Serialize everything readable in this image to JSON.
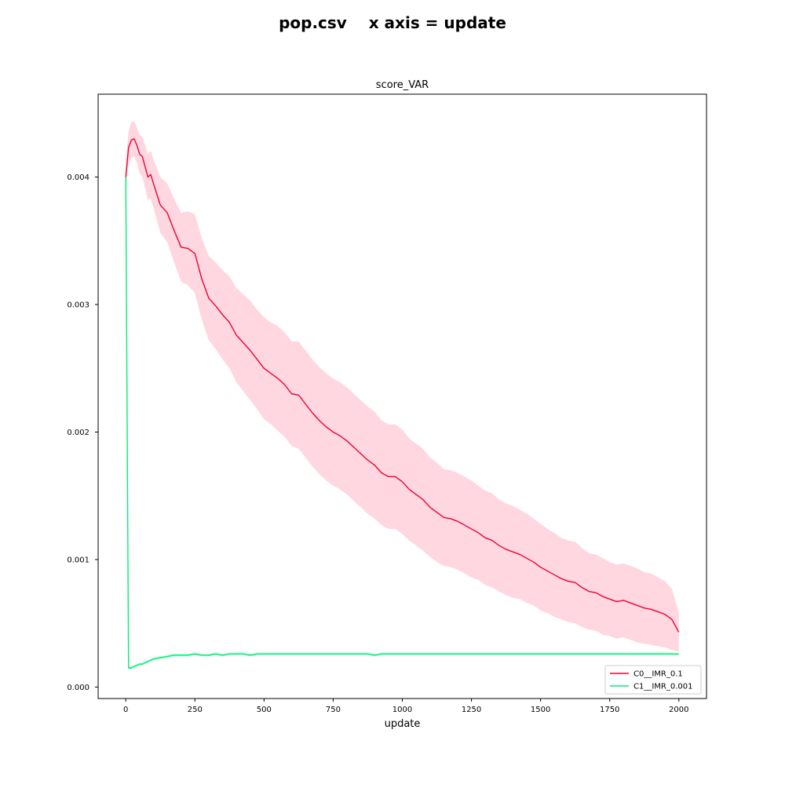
{
  "figure": {
    "suptitle": "pop.csv    x axis = update"
  },
  "chart_data": {
    "type": "line",
    "title": "score_VAR",
    "xlabel": "update",
    "ylabel": "",
    "xlim": [
      -100,
      2100
    ],
    "ylim": [
      -9e-05,
      0.00465
    ],
    "x_ticks": [
      0,
      250,
      500,
      750,
      1000,
      1250,
      1500,
      1750,
      2000
    ],
    "x_tick_labels": [
      "0",
      "250",
      "500",
      "750",
      "1000",
      "1250",
      "1500",
      "1750",
      "2000"
    ],
    "y_ticks": [
      0.0,
      0.001,
      0.002,
      0.003,
      0.004
    ],
    "y_tick_labels": [
      "0.000",
      "0.001",
      "0.002",
      "0.003",
      "0.004"
    ],
    "grid": false,
    "legend_position": "lower-right",
    "x": [
      0,
      10,
      20,
      30,
      40,
      50,
      60,
      70,
      80,
      90,
      100,
      125,
      150,
      175,
      200,
      225,
      250,
      275,
      300,
      325,
      350,
      375,
      400,
      425,
      450,
      475,
      500,
      525,
      550,
      575,
      600,
      625,
      650,
      675,
      700,
      725,
      750,
      775,
      800,
      825,
      850,
      875,
      900,
      925,
      950,
      975,
      1000,
      1025,
      1050,
      1075,
      1100,
      1125,
      1150,
      1175,
      1200,
      1225,
      1250,
      1275,
      1300,
      1325,
      1350,
      1375,
      1400,
      1425,
      1450,
      1475,
      1500,
      1525,
      1550,
      1575,
      1600,
      1625,
      1650,
      1675,
      1700,
      1725,
      1750,
      1775,
      1800,
      1825,
      1850,
      1875,
      1900,
      1925,
      1950,
      1975,
      2000
    ],
    "series": [
      {
        "name": "C0__IMR_0.1",
        "color": "#ee0033",
        "band_color": "#ffb6c6",
        "values": [
          0.004,
          0.00423,
          0.00429,
          0.0043,
          0.00425,
          0.00418,
          0.00416,
          0.00408,
          0.004,
          0.00402,
          0.00395,
          0.00378,
          0.00372,
          0.00358,
          0.00345,
          0.00344,
          0.0034,
          0.0032,
          0.00305,
          0.00299,
          0.00292,
          0.00286,
          0.00276,
          0.0027,
          0.00264,
          0.00257,
          0.0025,
          0.00246,
          0.00242,
          0.00237,
          0.0023,
          0.00229,
          0.00222,
          0.00215,
          0.00209,
          0.00204,
          0.002,
          0.00197,
          0.00193,
          0.00188,
          0.00183,
          0.00178,
          0.00174,
          0.00168,
          0.00165,
          0.00165,
          0.00161,
          0.00155,
          0.00151,
          0.00147,
          0.00141,
          0.00137,
          0.00133,
          0.00132,
          0.0013,
          0.00127,
          0.00124,
          0.00121,
          0.00117,
          0.00115,
          0.00111,
          0.00108,
          0.00106,
          0.00104,
          0.00101,
          0.00098,
          0.00094,
          0.00091,
          0.00088,
          0.00085,
          0.00083,
          0.00082,
          0.00078,
          0.00075,
          0.00074,
          0.00071,
          0.00069,
          0.00067,
          0.00068,
          0.00066,
          0.00064,
          0.00062,
          0.00061,
          0.00059,
          0.00057,
          0.00053,
          0.00043
        ],
        "lower": [
          0.0039,
          0.0041,
          0.00415,
          0.00416,
          0.00411,
          0.00403,
          0.004,
          0.00391,
          0.00382,
          0.00383,
          0.00376,
          0.00356,
          0.00349,
          0.00333,
          0.00318,
          0.00315,
          0.00309,
          0.00288,
          0.00272,
          0.00265,
          0.00257,
          0.0025,
          0.00239,
          0.00232,
          0.00225,
          0.00218,
          0.0021,
          0.00206,
          0.00201,
          0.00196,
          0.00189,
          0.00187,
          0.0018,
          0.00173,
          0.00167,
          0.00162,
          0.00158,
          0.00155,
          0.00151,
          0.00146,
          0.00141,
          0.00136,
          0.00132,
          0.00127,
          0.00124,
          0.00124,
          0.0012,
          0.00115,
          0.00111,
          0.00107,
          0.00102,
          0.00098,
          0.00095,
          0.00094,
          0.00092,
          0.00089,
          0.00086,
          0.00084,
          0.0008,
          0.00078,
          0.00075,
          0.00072,
          0.0007,
          0.00069,
          0.00066,
          0.00064,
          0.0006,
          0.00058,
          0.00055,
          0.00053,
          0.00051,
          0.0005,
          0.00047,
          0.00045,
          0.00044,
          0.00041,
          0.0004,
          0.00038,
          0.00039,
          0.00037,
          0.00035,
          0.00034,
          0.00033,
          0.00032,
          0.00031,
          0.00029,
          0.00028
        ],
        "upper": [
          0.0041,
          0.00436,
          0.00443,
          0.00444,
          0.00439,
          0.00433,
          0.00432,
          0.00425,
          0.00418,
          0.00421,
          0.00414,
          0.004,
          0.00395,
          0.00383,
          0.00372,
          0.00373,
          0.00371,
          0.00352,
          0.00338,
          0.00333,
          0.00327,
          0.00322,
          0.00313,
          0.00308,
          0.00303,
          0.00296,
          0.0029,
          0.00286,
          0.00283,
          0.00278,
          0.00271,
          0.00271,
          0.00264,
          0.00257,
          0.00251,
          0.00246,
          0.00242,
          0.00239,
          0.00235,
          0.0023,
          0.00225,
          0.0022,
          0.00216,
          0.00209,
          0.00206,
          0.00206,
          0.00202,
          0.00195,
          0.00191,
          0.00187,
          0.0018,
          0.00176,
          0.00171,
          0.0017,
          0.00168,
          0.00165,
          0.00162,
          0.00158,
          0.00154,
          0.00152,
          0.00147,
          0.00144,
          0.00142,
          0.00139,
          0.00136,
          0.00132,
          0.00128,
          0.00124,
          0.00121,
          0.00117,
          0.00115,
          0.00114,
          0.00109,
          0.00105,
          0.00104,
          0.00101,
          0.00098,
          0.00096,
          0.00097,
          0.00095,
          0.00093,
          0.0009,
          0.00089,
          0.00086,
          0.00083,
          0.00077,
          0.00058
        ]
      },
      {
        "name": "C1__IMR_0.001",
        "color": "#00ee77",
        "band_color": "#7dffc0",
        "values": [
          0.004,
          0.00015,
          0.00015,
          0.00016,
          0.00017,
          0.00018,
          0.00018,
          0.00019,
          0.0002,
          0.00021,
          0.00022,
          0.00023,
          0.00024,
          0.00025,
          0.00025,
          0.00025,
          0.00026,
          0.00025,
          0.00025,
          0.00026,
          0.00025,
          0.00026,
          0.00026,
          0.00026,
          0.00025,
          0.00026,
          0.00026,
          0.00026,
          0.00026,
          0.00026,
          0.00026,
          0.00026,
          0.00026,
          0.00026,
          0.00026,
          0.00026,
          0.00026,
          0.00026,
          0.00026,
          0.00026,
          0.00026,
          0.00026,
          0.00025,
          0.00026,
          0.00026,
          0.00026,
          0.00026,
          0.00026,
          0.00026,
          0.00026,
          0.00026,
          0.00026,
          0.00026,
          0.00026,
          0.00026,
          0.00026,
          0.00026,
          0.00026,
          0.00026,
          0.00026,
          0.00026,
          0.00026,
          0.00026,
          0.00026,
          0.00026,
          0.00026,
          0.00026,
          0.00026,
          0.00026,
          0.00026,
          0.00026,
          0.00026,
          0.00026,
          0.00026,
          0.00026,
          0.00026,
          0.00026,
          0.00026,
          0.00026,
          0.00026,
          0.00026,
          0.00026,
          0.00026,
          0.00026,
          0.00026,
          0.00026,
          0.00026
        ],
        "lower": [
          0.00398,
          0.00014,
          0.00014,
          0.00015,
          0.00016,
          0.00017,
          0.00017,
          0.00018,
          0.00019,
          0.0002,
          0.00021,
          0.00022,
          0.00023,
          0.00024,
          0.00024,
          0.00024,
          0.00025,
          0.00024,
          0.00024,
          0.00025,
          0.00024,
          0.00025,
          0.00025,
          0.00025,
          0.00024,
          0.00025,
          0.00025,
          0.00025,
          0.00025,
          0.00025,
          0.00025,
          0.00025,
          0.00025,
          0.00025,
          0.00025,
          0.00025,
          0.00025,
          0.00025,
          0.00025,
          0.00025,
          0.00025,
          0.00025,
          0.00024,
          0.00025,
          0.00025,
          0.00025,
          0.00025,
          0.00025,
          0.00025,
          0.00025,
          0.00025,
          0.00025,
          0.00025,
          0.00025,
          0.00025,
          0.00025,
          0.00025,
          0.00025,
          0.00025,
          0.00025,
          0.00025,
          0.00025,
          0.00025,
          0.00025,
          0.00025,
          0.00025,
          0.00025,
          0.00025,
          0.00025,
          0.00025,
          0.00025,
          0.00025,
          0.00025,
          0.00025,
          0.00025,
          0.00025,
          0.00025,
          0.00025,
          0.00025,
          0.00025,
          0.00025,
          0.00025,
          0.00025,
          0.00025,
          0.00025,
          0.00025,
          0.00025
        ],
        "upper": [
          0.00402,
          0.00016,
          0.00016,
          0.00017,
          0.00018,
          0.00019,
          0.00019,
          0.0002,
          0.00021,
          0.00022,
          0.00023,
          0.00024,
          0.00025,
          0.00026,
          0.00026,
          0.00026,
          0.00027,
          0.00026,
          0.00026,
          0.00027,
          0.00026,
          0.00027,
          0.00027,
          0.00027,
          0.00026,
          0.00027,
          0.00027,
          0.00027,
          0.00027,
          0.00027,
          0.00027,
          0.00027,
          0.00027,
          0.00027,
          0.00027,
          0.00027,
          0.00027,
          0.00027,
          0.00027,
          0.00027,
          0.00027,
          0.00027,
          0.00026,
          0.00027,
          0.00027,
          0.00027,
          0.00027,
          0.00027,
          0.00027,
          0.00027,
          0.00027,
          0.00027,
          0.00027,
          0.00027,
          0.00027,
          0.00027,
          0.00027,
          0.00027,
          0.00027,
          0.00027,
          0.00027,
          0.00027,
          0.00027,
          0.00027,
          0.00027,
          0.00027,
          0.00027,
          0.00027,
          0.00027,
          0.00027,
          0.00027,
          0.00027,
          0.00027,
          0.00027,
          0.00027,
          0.00027,
          0.00027,
          0.00027,
          0.00027,
          0.00027,
          0.00027,
          0.00027,
          0.00027,
          0.00027,
          0.00027,
          0.00027,
          0.00027
        ]
      }
    ]
  }
}
